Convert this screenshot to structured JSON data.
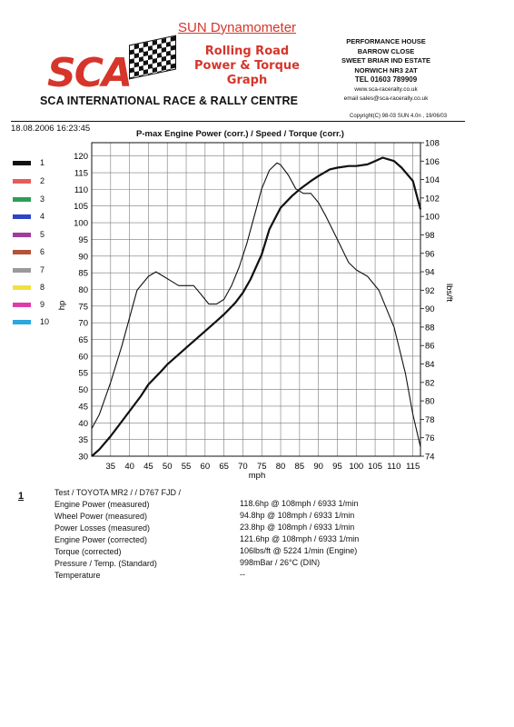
{
  "header": {
    "logo_text": "SCA",
    "company": "SCA INTERNATIONAL RACE & RALLY CENTRE",
    "sun_title": "SUN Dynamometer",
    "graph_title_lines": [
      "Rolling Road",
      "Power & Torque",
      "Graph"
    ],
    "address_lines": [
      "PERFORMANCE HOUSE",
      "BARROW CLOSE",
      "SWEET BRIAR IND ESTATE",
      "NORWICH NR3 2AT"
    ],
    "tel": "TEL 01603 789909",
    "web": "www.sca-raceralty.co.uk",
    "email": "email sales@sca-racerally.co.uk",
    "copyright": "Copyright(C) 98-03 SUN 4.0n , 19/06/03",
    "datetime": "18.08.2006 16:23:45",
    "chart_title": "P-max Engine Power  (corr.) / Speed / Torque (corr.)"
  },
  "legend": [
    {
      "label": "1",
      "color": "#111111"
    },
    {
      "label": "2",
      "color": "#e85b5b"
    },
    {
      "label": "3",
      "color": "#2e9e57"
    },
    {
      "label": "4",
      "color": "#2b44c9"
    },
    {
      "label": "5",
      "color": "#a33aa0"
    },
    {
      "label": "6",
      "color": "#b5523a"
    },
    {
      "label": "7",
      "color": "#9a9a9a"
    },
    {
      "label": "8",
      "color": "#f2e13c"
    },
    {
      "label": "9",
      "color": "#e03ca8"
    },
    {
      "label": "10",
      "color": "#2aa7de"
    }
  ],
  "chart_data": {
    "type": "line",
    "title": "P-max Engine Power  (corr.) / Speed / Torque (corr.)",
    "xlabel": "mph",
    "ylabel": "hp",
    "y2label": "lbs/ft",
    "xlim": [
      30,
      117
    ],
    "ylim": [
      30,
      124
    ],
    "y2lim": [
      74,
      108
    ],
    "x_ticks": [
      35,
      40,
      45,
      50,
      55,
      60,
      65,
      70,
      75,
      80,
      85,
      90,
      95,
      100,
      105,
      110,
      115
    ],
    "y_ticks": [
      30,
      35,
      40,
      45,
      50,
      55,
      60,
      65,
      70,
      75,
      80,
      85,
      90,
      95,
      100,
      105,
      110,
      115,
      120
    ],
    "y2_ticks": [
      74,
      76,
      78,
      80,
      82,
      84,
      86,
      88,
      90,
      92,
      94,
      96,
      98,
      100,
      102,
      104,
      106,
      108
    ],
    "grid": true,
    "series": [
      {
        "axis": "left",
        "x": [
          30,
          32,
          35,
          38,
          40,
          43,
          45,
          48,
          50,
          53,
          55,
          58,
          60,
          63,
          65,
          68,
          70,
          72,
          75,
          77,
          80,
          83,
          85,
          88,
          90,
          93,
          95,
          98,
          100,
          103,
          105,
          107,
          110,
          112,
          115,
          117
        ],
        "y": [
          30,
          32,
          36,
          40.5,
          43.5,
          48,
          51.5,
          55,
          57.5,
          60.5,
          62.5,
          65.5,
          67.5,
          70.5,
          72.5,
          76,
          79,
          83,
          90.5,
          98,
          104.5,
          108,
          110,
          112.5,
          114,
          116,
          116.5,
          117,
          117,
          117.5,
          118.5,
          119.5,
          118.5,
          116.5,
          112.5,
          104
        ]
      },
      {
        "axis": "right",
        "x": [
          30,
          32,
          35,
          38,
          40,
          42,
          45,
          47,
          49,
          51,
          53,
          55,
          57,
          59,
          61,
          63,
          65,
          67,
          69,
          71,
          73,
          75,
          77,
          79,
          80,
          82,
          84,
          86,
          88,
          90,
          92,
          95,
          98,
          100,
          103,
          106,
          110,
          113,
          115,
          117
        ],
        "y": [
          77,
          78.5,
          82,
          86,
          89,
          92,
          93.5,
          94,
          93.5,
          93,
          92.5,
          92.5,
          92.5,
          91.5,
          90.5,
          90.5,
          91,
          92.5,
          94.5,
          97,
          100,
          103,
          105,
          105.8,
          105.6,
          104.5,
          103,
          102.5,
          102.5,
          101.5,
          100,
          97.5,
          95,
          94.2,
          93.5,
          92,
          88,
          83,
          78.5,
          75
        ]
      }
    ]
  },
  "summary": {
    "run_number": "1",
    "labels": [
      "Test / TOYOTA MR2 /  / D767 FJD /",
      "Engine Power (measured)",
      "Wheel Power (measured)",
      "Power Losses (measured)",
      "Engine Power (corrected)",
      "Torque (corrected)",
      "Pressure / Temp. (Standard)",
      "Temperature"
    ],
    "values": [
      "118.6hp @ 108mph / 6933 1/min",
      "94.8hp @ 108mph / 6933 1/min",
      "23.8hp @ 108mph / 6933 1/min",
      "121.6hp @ 108mph / 6933 1/min",
      "106lbs/ft @ 5224 1/min (Engine)",
      "998mBar / 26°C (DIN)",
      "--"
    ]
  }
}
